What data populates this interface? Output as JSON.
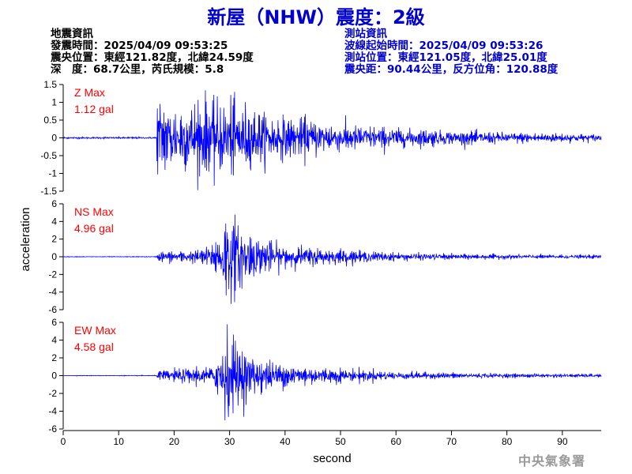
{
  "header": {
    "title": "新屋（NHW）震度：2級"
  },
  "quake_info": {
    "heading": "地震資訊",
    "origin_time": "發震時間：2025/04/09 09:53:25",
    "epicenter": "震央位置：東經121.82度，北緯24.59度",
    "depth_magnitude": "深　度：68.7公里，芮氏規模：5.8"
  },
  "station_info": {
    "heading": "測站資訊",
    "arrival_time": "波線起始時間：2025/04/09 09:53:26",
    "location": "測站位置：東經121.05度，北緯25.01度",
    "distance_azimuth": "震央距：90.44公里，反方位角：120.88度"
  },
  "watermark": "中央氣象署",
  "colors": {
    "title": "#0000cc",
    "trace": "#0000ff",
    "max_label": "#ff0000",
    "station_text": "#0000cc",
    "axis": "#000000"
  },
  "chart_data": {
    "type": "line",
    "xlabel": "second",
    "ylabel": "acceleration",
    "xlim": [
      0,
      97
    ],
    "xticks": [
      0,
      10,
      20,
      30,
      40,
      50,
      60,
      70,
      80,
      90
    ],
    "panels": [
      {
        "name": "Z",
        "max_label": "Z Max",
        "max_value": "1.12 gal",
        "ylim": [
          -1.5,
          1.5
        ],
        "yticks": [
          1.5,
          1,
          0.5,
          0,
          -0.5,
          -1,
          -1.5
        ],
        "yticklabels": [
          "1.5",
          "1",
          "0.5",
          "0",
          "-0.5",
          "-1",
          "-1.5"
        ],
        "envelope": [
          [
            0,
            0.02
          ],
          [
            16.8,
            0.02
          ],
          [
            17.0,
            0.9
          ],
          [
            20,
            0.75
          ],
          [
            25,
            0.8
          ],
          [
            30,
            0.85
          ],
          [
            33,
            0.7
          ],
          [
            40,
            0.45
          ],
          [
            50,
            0.32
          ],
          [
            60,
            0.22
          ],
          [
            70,
            0.16
          ],
          [
            80,
            0.12
          ],
          [
            90,
            0.1
          ],
          [
            97,
            0.08
          ]
        ]
      },
      {
        "name": "NS",
        "max_label": "NS Max",
        "max_value": "4.96 gal",
        "ylim": [
          -6,
          6
        ],
        "yticks": [
          6,
          4,
          2,
          0,
          -2,
          -4,
          -6
        ],
        "yticklabels": [
          "6",
          "4",
          "2",
          "0",
          "-2",
          "-4",
          "-6"
        ],
        "envelope": [
          [
            0,
            0.02
          ],
          [
            16.8,
            0.03
          ],
          [
            17.2,
            0.5
          ],
          [
            24,
            0.55
          ],
          [
            27,
            1.2
          ],
          [
            29.5,
            4.0
          ],
          [
            31,
            3.2
          ],
          [
            35,
            1.8
          ],
          [
            40,
            1.0
          ],
          [
            50,
            0.6
          ],
          [
            60,
            0.35
          ],
          [
            70,
            0.25
          ],
          [
            80,
            0.2
          ],
          [
            97,
            0.15
          ]
        ]
      },
      {
        "name": "EW",
        "max_label": "EW Max",
        "max_value": "4.58 gal",
        "ylim": [
          -6,
          6
        ],
        "yticks": [
          6,
          4,
          2,
          0,
          -2,
          -4,
          -6
        ],
        "yticklabels": [
          "6",
          "4",
          "2",
          "0",
          "-2",
          "-4",
          "-6"
        ],
        "envelope": [
          [
            0,
            0.02
          ],
          [
            16.8,
            0.03
          ],
          [
            17.2,
            0.45
          ],
          [
            23,
            0.7
          ],
          [
            27,
            0.8
          ],
          [
            29.3,
            4.3
          ],
          [
            31,
            2.8
          ],
          [
            35,
            1.6
          ],
          [
            40,
            1.0
          ],
          [
            50,
            0.6
          ],
          [
            60,
            0.35
          ],
          [
            70,
            0.25
          ],
          [
            80,
            0.18
          ],
          [
            97,
            0.14
          ]
        ]
      }
    ],
    "grid": false,
    "legend": "none"
  }
}
